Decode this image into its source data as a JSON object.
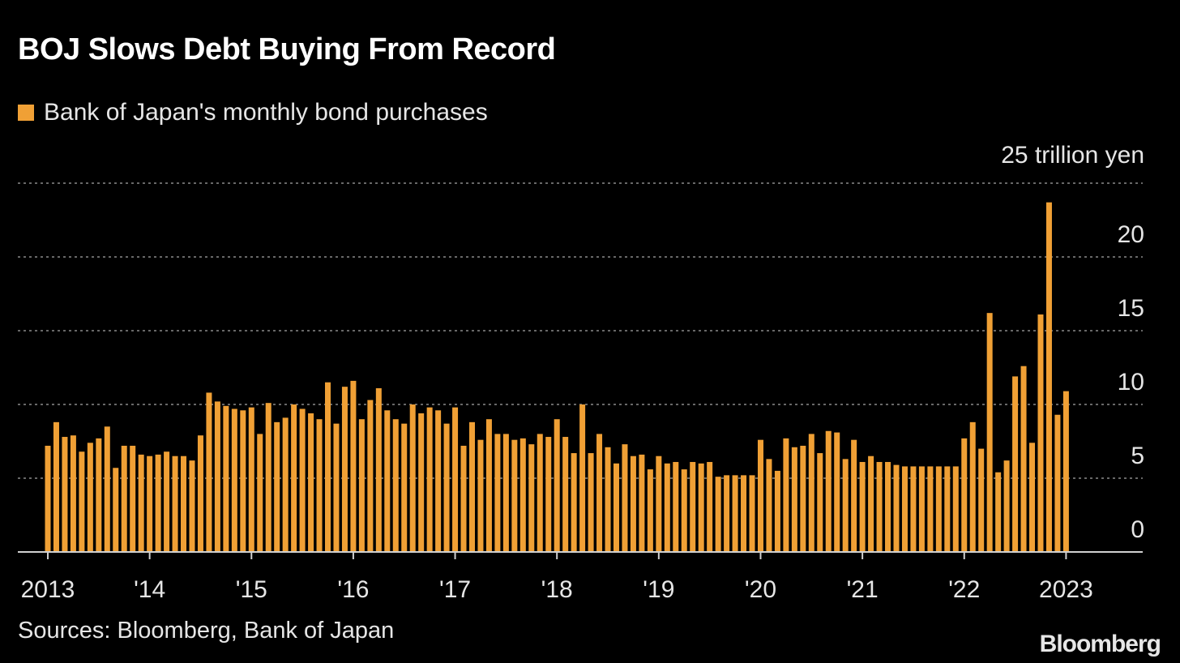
{
  "colors": {
    "background": "#000000",
    "bar": "#f0a035",
    "grid": "#8a8a8a",
    "axis": "#d0d0d0",
    "text": "#e6e6e6"
  },
  "chart_data": {
    "type": "bar",
    "title": "BOJ Slows Debt Buying From Record",
    "legend": [
      "Bank of Japan's monthly bond purchases"
    ],
    "y_unit_label": "25 trillion yen",
    "source": "Sources: Bloomberg, Bank of Japan",
    "brand": "Bloomberg",
    "ylim": [
      0,
      25
    ],
    "y_ticks": [
      0,
      5,
      10,
      15,
      20
    ],
    "grid": "horizontal dotted",
    "x_start": "2013-01",
    "x_ticks": [
      {
        "label": "2013",
        "month_index": 0
      },
      {
        "label": "'14",
        "month_index": 12
      },
      {
        "label": "'15",
        "month_index": 24
      },
      {
        "label": "'16",
        "month_index": 36
      },
      {
        "label": "'17",
        "month_index": 48
      },
      {
        "label": "'18",
        "month_index": 60
      },
      {
        "label": "'19",
        "month_index": 72
      },
      {
        "label": "'20",
        "month_index": 84
      },
      {
        "label": "'21",
        "month_index": 96
      },
      {
        "label": "'22",
        "month_index": 108
      },
      {
        "label": "2023",
        "month_index": 120
      }
    ],
    "series": [
      {
        "values": [
          7.2,
          8.8,
          7.8,
          7.9,
          6.8,
          7.4,
          7.7,
          8.5,
          5.7,
          7.2,
          7.2,
          6.6,
          6.5,
          6.6,
          6.8,
          6.5,
          6.5,
          6.2,
          7.9,
          10.8,
          10.2,
          9.9,
          9.7,
          9.6,
          9.8,
          8.0,
          10.1,
          8.8,
          9.1,
          10.0,
          9.7,
          9.4,
          9.0,
          11.5,
          8.7,
          11.2,
          11.6,
          9.0,
          10.3,
          11.1,
          9.6,
          9.0,
          8.7,
          10.0,
          9.4,
          9.8,
          9.6,
          8.7,
          9.8,
          7.2,
          8.8,
          7.6,
          9.0,
          8.0,
          8.0,
          7.6,
          7.7,
          7.3,
          8.0,
          7.8,
          9.0,
          7.8,
          6.7,
          10.0,
          6.7,
          8.0,
          7.1,
          6.0,
          7.3,
          6.5,
          6.6,
          5.6,
          6.5,
          6.0,
          6.1,
          5.6,
          6.1,
          6.0,
          6.1,
          5.1,
          5.2,
          5.2,
          5.2,
          5.2,
          7.6,
          6.3,
          5.5,
          7.7,
          7.1,
          7.2,
          8.0,
          6.7,
          8.2,
          8.1,
          6.3,
          7.6,
          6.1,
          6.5,
          6.1,
          6.1,
          5.9,
          5.8,
          5.8,
          5.8,
          5.8,
          5.8,
          5.8,
          5.8,
          7.7,
          8.8,
          7.0,
          16.2,
          5.4,
          6.2,
          11.9,
          12.6,
          7.4,
          16.1,
          23.7,
          9.3,
          10.9
        ]
      }
    ]
  }
}
